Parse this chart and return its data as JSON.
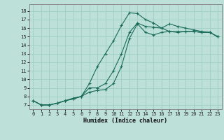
{
  "title": "",
  "xlabel": "Humidex (Indice chaleur)",
  "ylabel": "",
  "bg_color": "#bde0d8",
  "grid_color": "#9ecfc7",
  "line_color": "#1a6b5a",
  "x_values": [
    0,
    1,
    2,
    3,
    4,
    5,
    6,
    7,
    8,
    9,
    10,
    11,
    12,
    13,
    14,
    15,
    16,
    17,
    18,
    19,
    20,
    21,
    22,
    23
  ],
  "line1": [
    7.5,
    7.0,
    7.0,
    7.2,
    7.5,
    7.7,
    8.0,
    8.5,
    8.7,
    8.8,
    9.5,
    11.5,
    14.8,
    16.5,
    15.5,
    15.2,
    15.5,
    15.6,
    15.6,
    15.6,
    15.6,
    15.5,
    15.5,
    15.0
  ],
  "line2": [
    7.5,
    7.0,
    7.0,
    7.2,
    7.5,
    7.7,
    8.0,
    9.0,
    9.0,
    9.5,
    11.0,
    13.0,
    15.5,
    16.6,
    16.2,
    16.1,
    16.0,
    16.5,
    16.2,
    16.0,
    15.8,
    15.6,
    15.5,
    15.0
  ],
  "line3": [
    7.5,
    7.0,
    7.0,
    7.2,
    7.5,
    7.8,
    8.0,
    9.5,
    11.5,
    13.0,
    14.5,
    16.3,
    17.8,
    17.7,
    17.0,
    16.6,
    16.0,
    15.6,
    15.5,
    15.6,
    15.6,
    15.5,
    15.5,
    15.0
  ],
  "ylim": [
    6.5,
    18.8
  ],
  "xlim": [
    -0.5,
    23.5
  ],
  "yticks": [
    7,
    8,
    9,
    10,
    11,
    12,
    13,
    14,
    15,
    16,
    17,
    18
  ],
  "xticks": [
    0,
    1,
    2,
    3,
    4,
    5,
    6,
    7,
    8,
    9,
    10,
    11,
    12,
    13,
    14,
    15,
    16,
    17,
    18,
    19,
    20,
    21,
    22,
    23
  ],
  "xlabel_fontsize": 6.0,
  "tick_fontsize": 5.0
}
